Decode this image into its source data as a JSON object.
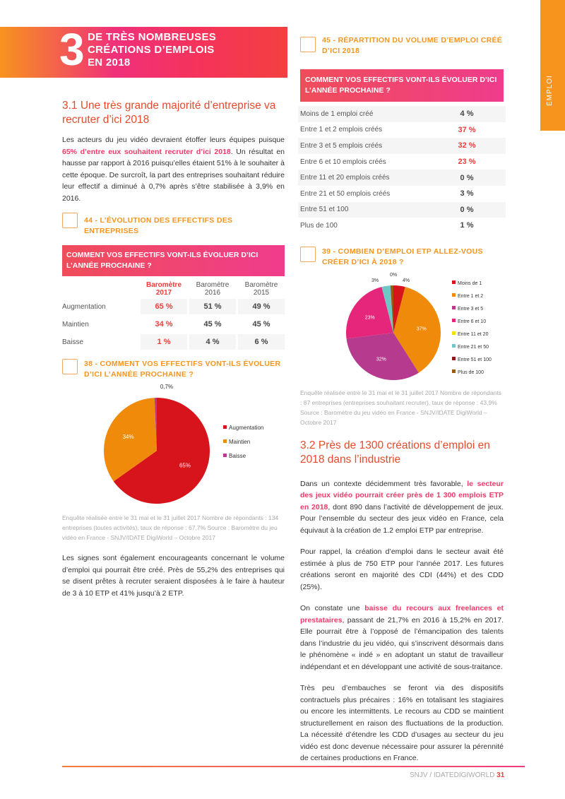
{
  "side_tab": "EMPLOI",
  "chapter": {
    "number": "3",
    "title_lines": [
      "DE TRÈS NOMBREUSES",
      "CRÉATIONS D’EMPLOIS",
      "EN 2018"
    ]
  },
  "s31": {
    "title": "3.1 Une très grande majorité d’entreprise va recruter d’ici 2018",
    "p1_a": "Les acteurs du jeu vidéo devraient étoffer leurs équipes puisque ",
    "p1_hl": "65% d’entre eux souhaitent recruter d’ici 2018",
    "p1_b": ". Un résultat en hausse par rapport à 2016 puisqu’elles étaient 51% à le souhaiter à cette époque. De surcroît, la part des entreprises souhaitant réduire leur effectif a diminué à 0,7% après s’être stabilisée à 3,9% en 2016.",
    "p2": "Les signes sont également encourageants concernant le volume d’emploi qui pourrait être créé. Près de 55,2% des entreprises qui se disent prêtes à recruter seraient disposées à le faire à hauteur de 3 à 10 ETP et 41% jusqu’à 2 ETP."
  },
  "fig44": {
    "title": "44 - L’ÉVOLUTION DES EFFECTIFS DES ENTREPRISES",
    "question": "COMMENT VOS EFFECTIFS VONT-ILS ÉVOLUER D’ICI L’ANNÉE PROCHAINE ?",
    "headers": [
      "Baromètre 2017",
      "Baromètre 2016",
      "Baromètre 2015"
    ],
    "rows": [
      {
        "label": "Augmentation",
        "v": [
          "65 %",
          "51 %",
          "49 %"
        ]
      },
      {
        "label": "Maintien",
        "v": [
          "34 %",
          "45 %",
          "45 %"
        ]
      },
      {
        "label": "Baisse",
        "v": [
          "1 %",
          "4 %",
          "6 %"
        ]
      }
    ]
  },
  "fig38": {
    "title": "38 - COMMENT VOS EFFECTIFS VONT-ILS ÉVOLUER D’ICI L’ANNÉE PROCHAINE ?",
    "source": "Enquête réalisée entre le 31 mai et le 31 juillet 2017 Nombre de répondants : 134 entreprises (toutes activités), taux de réponse : 67,7% Source : Baromètre du jeu vidéo en France - SNJV/IDATE DigiWorld – Octobre 2017"
  },
  "fig45": {
    "title": "45 - RÉPARTITION DU VOLUME D’EMPLOI CRÉÉ D’ICI 2018",
    "question": "COMMENT VOS EFFECTIFS VONT-ILS ÉVOLUER D’ICI L’ANNÉE PROCHAINE ?",
    "rows": [
      {
        "label": "Moins de 1 emploi créé",
        "v": "4 %"
      },
      {
        "label": "Entre 1 et 2 emplois créés",
        "v": "37 %",
        "hl": true
      },
      {
        "label": "Entre 3 et 5 emplois créés",
        "v": "32 %",
        "hl": true
      },
      {
        "label": "Entre 6 et 10 emplois créés",
        "v": "23 %",
        "hl": true
      },
      {
        "label": "Entre 11 et 20 emplois créés",
        "v": "0 %"
      },
      {
        "label": "Entre 21 et 50 emplois créés",
        "v": "3 %"
      },
      {
        "label": "Entre 51 et 100",
        "v": "0 %"
      },
      {
        "label": "Plus de 100",
        "v": "1 %"
      }
    ]
  },
  "fig39": {
    "title": "39 - COMBIEN D’EMPLOI ETP ALLEZ-VOUS CRÉER D’ICI À 2018 ?",
    "source": "Enquête réalisée entre le 31 mai et le 31 juillet 2017 Nombre de répondants : 87 entreprises (entreprises souhaitant recruter), taux de réponse : 43,9% Source : Baromètre du jeu vidéo en France - SNJV/IDATE DigiWorld – Octobre 2017"
  },
  "s32": {
    "title": "3.2 Près de 1300 créations d’emploi en 2018 dans l’industrie",
    "p1_a": "Dans un contexte décidemment très favorable, ",
    "p1_hl": "le secteur des jeux vidéo pourrait créer près de 1 300 emplois ETP en 2018",
    "p1_b": ", dont 890 dans l’activité de développement de jeux. Pour l’ensemble du secteur des jeux vidéo en France, cela équivaut à la création de 1.2 emploi ETP par entreprise.",
    "p2": "Pour rappel, la création d’emploi dans le secteur avait été estimée à plus de 750 ETP pour l’année 2017. Les futures créations seront en majorité des CDI (44%) et des CDD (25%).",
    "p3_a": "On constate une ",
    "p3_hl": "baisse du recours aux freelances et prestataires",
    "p3_b": ", passant de 21,7% en 2016 à 15,2% en 2017. Elle pourrait être à l’opposé de l’émancipation des talents dans l’industrie du jeu vidéo, qui s’inscrivent désormais dans le phénomène « indé » en adoptant un statut de travailleur indépendant et en développant une activité de sous-traitance.",
    "p4": "Très peu d’embauches se feront via des dispositifs contractuels plus précaires : 16% en totalisant les stagiaires ou encore les intermittents. Le recours au CDD se maintient structurellement en raison des fluctuations de la production. La nécessité d’étendre les CDD d’usages au secteur du jeu vidéo est donc devenue nécessaire pour assurer la pérennité de certaines productions en France."
  },
  "footer": {
    "text": "SNJV / IDATEDIGIWORLD",
    "page": "31"
  },
  "chart_data": [
    {
      "type": "pie",
      "labels": [
        "Augmentation",
        "Maintien",
        "Baisse"
      ],
      "values": [
        65,
        34,
        0.7
      ],
      "data_labels": [
        "65%",
        "34%",
        "0,7%"
      ],
      "colors": [
        "#d7141c",
        "#f08a0a",
        "#b63a8e"
      ],
      "legend": "right"
    },
    {
      "type": "pie",
      "labels": [
        "Moins de 1",
        "Entre 1 et 2",
        "Entre 3 et 5",
        "Entre 6 et 10",
        "Entre 11 et 20",
        "Entre 21 et 50",
        "Entre 51 et 100",
        "Plus de 100"
      ],
      "values": [
        4,
        37,
        32,
        23,
        0,
        3,
        0,
        1
      ],
      "data_labels": [
        "4%",
        "37%",
        "32%",
        "23%",
        "",
        "3%",
        "0%",
        ""
      ],
      "colors": [
        "#d7141c",
        "#f08a0a",
        "#b63a8e",
        "#e5267a",
        "#f5e100",
        "#6fc6c6",
        "#8b1a1a",
        "#9c5a10"
      ],
      "legend": "right"
    }
  ]
}
